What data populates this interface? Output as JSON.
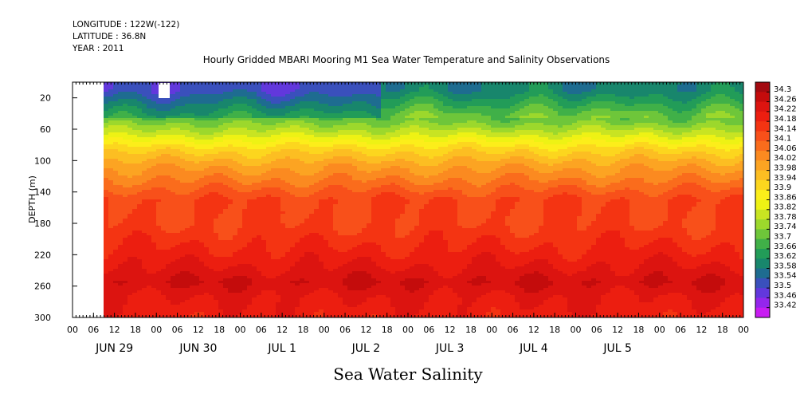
{
  "header": {
    "longitude": "LONGITUDE : 122W(-122)",
    "latitude": "LATITUDE : 36.8N",
    "year": "YEAR : 2011"
  },
  "chart_data": {
    "type": "heatmap",
    "title": "Hourly Gridded MBARI Mooring M1 Sea Water Temperature and Salinity Observations",
    "xlabel": "Sea Water Salinity",
    "ylabel": "DEPTH (m)",
    "ylim": [
      300,
      0
    ],
    "y_ticks": [
      20,
      60,
      100,
      140,
      180,
      220,
      260,
      300
    ],
    "x_hour_ticks": [
      "00",
      "06",
      "12",
      "18",
      "00",
      "06",
      "12",
      "18",
      "00",
      "06",
      "12",
      "18",
      "00",
      "06",
      "12",
      "18",
      "00",
      "06",
      "12",
      "18",
      "00",
      "06",
      "12",
      "18",
      "00",
      "06",
      "12",
      "18",
      "00",
      "06",
      "12",
      "18",
      "00"
    ],
    "x_day_labels": [
      "JUN 29",
      "JUN 30",
      "JUL 1",
      "JUL 2",
      "JUL 3",
      "JUL 4",
      "JUL 5"
    ],
    "colorbar_levels": [
      "34.3",
      "34.26",
      "34.22",
      "34.18",
      "34.14",
      "34.1",
      "34.06",
      "34.02",
      "33.98",
      "33.94",
      "33.9",
      "33.86",
      "33.82",
      "33.78",
      "33.74",
      "33.7",
      "33.66",
      "33.62",
      "33.58",
      "33.54",
      "33.5",
      "33.46",
      "33.42"
    ],
    "colorbar_colors": [
      "#a30a10",
      "#c40c0c",
      "#dc1410",
      "#ec1e10",
      "#f43412",
      "#f8501a",
      "#fa6c1c",
      "#fb8a20",
      "#fca422",
      "#fcbe22",
      "#fcd61e",
      "#fcee1a",
      "#eef214",
      "#c8e422",
      "#9cd82c",
      "#6ec63a",
      "#40b048",
      "#229c58",
      "#18866c",
      "#1e6c90",
      "#3a50bc",
      "#6238dc",
      "#9426ec",
      "#c81cf2"
    ],
    "profile": [
      {
        "depth": 10,
        "value": 33.56
      },
      {
        "depth": 25,
        "value": 33.62
      },
      {
        "depth": 45,
        "value": 33.7
      },
      {
        "depth": 65,
        "value": 33.8
      },
      {
        "depth": 85,
        "value": 33.92
      },
      {
        "depth": 105,
        "value": 34.0
      },
      {
        "depth": 125,
        "value": 34.06
      },
      {
        "depth": 150,
        "value": 34.14
      },
      {
        "depth": 180,
        "value": 34.14
      },
      {
        "depth": 210,
        "value": 34.18
      },
      {
        "depth": 235,
        "value": 34.22
      },
      {
        "depth": 255,
        "value": 34.26
      },
      {
        "depth": 275,
        "value": 34.22
      },
      {
        "depth": 300,
        "value": 34.2
      }
    ]
  }
}
